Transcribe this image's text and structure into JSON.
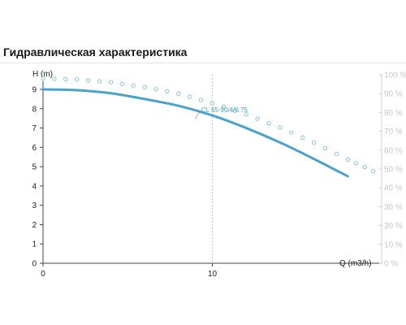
{
  "title": "Гидравлическая характеристика",
  "chart_data": {
    "type": "line",
    "title": "Гидравлическая характеристика",
    "xlabel": "Q (m3/h)",
    "ylabel": "H (m)",
    "xlim": [
      0,
      20
    ],
    "ylim": [
      0,
      9.5
    ],
    "y2lim": [
      0,
      100
    ],
    "x_ticks": [
      "0",
      "10"
    ],
    "y_ticks": [
      "0",
      "1",
      "2",
      "3",
      "4",
      "5",
      "6",
      "7",
      "8",
      "9"
    ],
    "y2_ticks": [
      "0 %",
      "10 %",
      "20 %",
      "30 %",
      "40 %",
      "50 %",
      "60 %",
      "70 %",
      "80 %",
      "90 %",
      "100 %"
    ],
    "grid": true,
    "series": [
      {
        "name": "CL 65-90/4/0.75",
        "style": "solid",
        "color": "#4aa3c8",
        "x": [
          0,
          2,
          4,
          6,
          8,
          10,
          12,
          14,
          16,
          18
        ],
        "y": [
          9.0,
          8.96,
          8.8,
          8.5,
          8.15,
          7.65,
          7.0,
          6.25,
          5.4,
          4.5
        ]
      },
      {
        "style": "dotted",
        "color": "#7cc0df",
        "axis": "right",
        "x": [
          0,
          2,
          4,
          6,
          8,
          10,
          12,
          14,
          16,
          18,
          19.5
        ],
        "y": [
          98,
          97.5,
          96,
          93.5,
          90,
          85,
          79,
          72,
          64,
          55,
          49
        ]
      }
    ],
    "annotations": [
      {
        "text": "CL 65-90/4/0.75",
        "x": 9.2,
        "y": 8.0
      }
    ]
  }
}
